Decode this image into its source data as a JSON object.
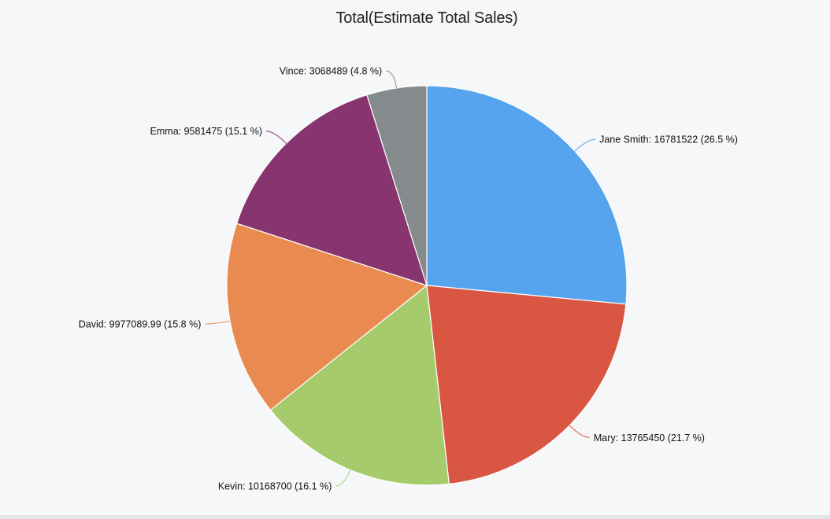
{
  "chart_data": {
    "type": "pie",
    "title": "Total(Estimate Total Sales)",
    "series": [
      {
        "slices": [
          {
            "label": "Jane Smith",
            "value": 16781522,
            "percent": 26.5,
            "color": "#57a4ee",
            "display": "Jane Smith: 16781522 (26.5 %)"
          },
          {
            "label": "Mary",
            "value": 13765450,
            "percent": 21.7,
            "color": "#d95742",
            "display": "Mary: 13765450 (21.7 %)"
          },
          {
            "label": "Kevin",
            "value": 10168700,
            "percent": 16.1,
            "color": "#a5cb6c",
            "display": "Kevin: 10168700 (16.1 %)"
          },
          {
            "label": "David",
            "value": 9977089.99,
            "percent": 15.8,
            "color": "#e98b51",
            "display": "David: 9977089.99 (15.8 %)"
          },
          {
            "label": "Emma",
            "value": 9581475,
            "percent": 15.1,
            "color": "#87346f",
            "display": "Emma: 9581475 (15.1 %)"
          },
          {
            "label": "Vince",
            "value": 3068489,
            "percent": 4.8,
            "color": "#858b8d",
            "display": "Vince: 3068489 (4.8 %)"
          }
        ]
      }
    ],
    "start_angle": "top",
    "direction": "clockwise",
    "legend": "none",
    "data_labels": "outside"
  }
}
